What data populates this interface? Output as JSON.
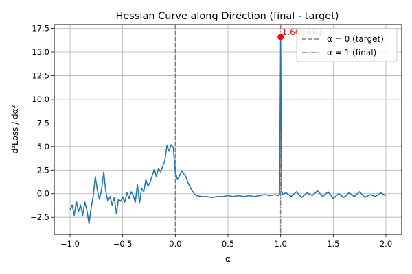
{
  "chart_data": {
    "type": "line",
    "title": "Hessian Curve along Direction (final - target)",
    "xlabel": "α",
    "ylabel": "d²Loss / dα²",
    "xlim": [
      -1.15,
      2.15
    ],
    "ylim": [
      -4.3,
      17.9
    ],
    "xticks": [
      -1.0,
      -0.5,
      0.0,
      0.5,
      1.0,
      1.5,
      2.0
    ],
    "xtick_labels": [
      "−1.0",
      "−0.5",
      "0.0",
      "0.5",
      "1.0",
      "1.5",
      "2.0"
    ],
    "yticks": [
      -2.5,
      0.0,
      2.5,
      5.0,
      7.5,
      10.0,
      12.5,
      15.0,
      17.5
    ],
    "ytick_labels": [
      "−2.5",
      "0.0",
      "2.5",
      "5.0",
      "7.5",
      "10.0",
      "12.5",
      "15.0",
      "17.5"
    ],
    "grid": true,
    "legend_position": "top-right",
    "series": [
      {
        "color": "#1f77b4",
        "x": [
          -1.0,
          -0.98,
          -0.96,
          -0.94,
          -0.92,
          -0.9,
          -0.88,
          -0.86,
          -0.84,
          -0.82,
          -0.8,
          -0.78,
          -0.76,
          -0.74,
          -0.72,
          -0.7,
          -0.68,
          -0.66,
          -0.64,
          -0.62,
          -0.6,
          -0.58,
          -0.56,
          -0.54,
          -0.52,
          -0.5,
          -0.48,
          -0.46,
          -0.44,
          -0.42,
          -0.4,
          -0.38,
          -0.36,
          -0.34,
          -0.32,
          -0.3,
          -0.28,
          -0.26,
          -0.24,
          -0.22,
          -0.2,
          -0.18,
          -0.16,
          -0.14,
          -0.12,
          -0.1,
          -0.08,
          -0.06,
          -0.04,
          -0.02,
          0.0,
          0.02,
          0.04,
          0.06,
          0.08,
          0.1,
          0.12,
          0.14,
          0.16,
          0.18,
          0.2,
          0.25,
          0.3,
          0.35,
          0.4,
          0.45,
          0.5,
          0.55,
          0.6,
          0.65,
          0.7,
          0.75,
          0.8,
          0.85,
          0.9,
          0.95,
          0.98,
          0.99,
          1.0,
          1.01,
          1.02,
          1.05,
          1.1,
          1.15,
          1.2,
          1.25,
          1.3,
          1.35,
          1.4,
          1.45,
          1.5,
          1.55,
          1.6,
          1.65,
          1.7,
          1.75,
          1.8,
          1.85,
          1.9,
          1.95,
          2.0
        ],
        "y": [
          -1.7,
          -1.2,
          -2.3,
          -0.8,
          -1.9,
          -1.2,
          -2.3,
          -0.9,
          -1.7,
          -3.2,
          -1.5,
          -0.3,
          1.8,
          0.3,
          -0.6,
          0.5,
          2.3,
          0.2,
          -0.8,
          -0.3,
          -1.2,
          -0.4,
          -2.1,
          -0.6,
          -0.8,
          -0.4,
          -0.9,
          0.1,
          -0.5,
          0.2,
          -0.2,
          -0.9,
          1.0,
          -1.0,
          0.6,
          0.2,
          1.5,
          0.8,
          1.2,
          1.9,
          2.6,
          1.8,
          2.7,
          2.3,
          2.9,
          3.5,
          5.1,
          4.5,
          5.2,
          4.9,
          2.3,
          1.5,
          1.9,
          2.4,
          2.1,
          1.8,
          1.2,
          0.7,
          0.3,
          0.0,
          -0.2,
          -0.3,
          -0.3,
          -0.4,
          -0.3,
          -0.3,
          -0.2,
          -0.3,
          -0.2,
          -0.3,
          -0.2,
          -0.3,
          -0.2,
          -0.1,
          -0.2,
          -0.1,
          -0.2,
          0.0,
          16.6,
          0.3,
          -0.1,
          0.1,
          -0.3,
          0.2,
          -0.4,
          0.1,
          -0.2,
          0.3,
          -0.3,
          0.2,
          -0.5,
          0.0,
          -0.4,
          0.1,
          -0.3,
          0.2,
          -0.4,
          -0.1,
          -0.3,
          0.1,
          -0.2
        ]
      }
    ],
    "vlines": [
      {
        "x": 0.0,
        "style": "dashed",
        "color": "#808080",
        "label": "α = 0 (target)"
      },
      {
        "x": 1.0,
        "style": "dashdot",
        "color": "#808080",
        "label": "α = 1 (final)"
      }
    ],
    "max_point": {
      "x": 1.0,
      "y": 16.6,
      "label": "1.66e+01",
      "color": "#ff0000"
    }
  }
}
